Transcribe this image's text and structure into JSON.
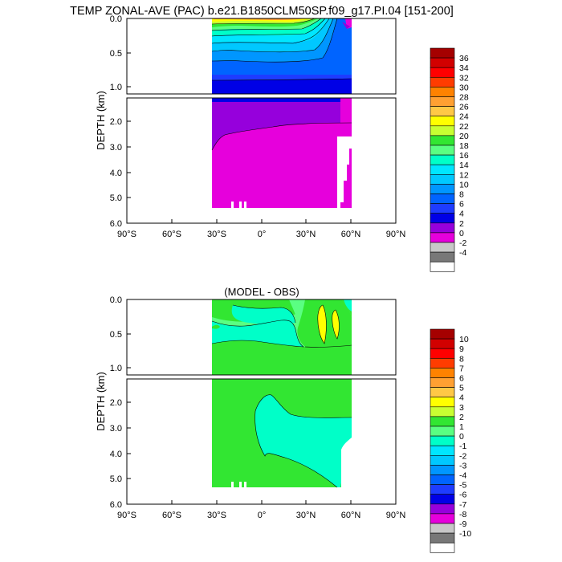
{
  "title": "TEMP ZONAL-AVE (PAC) b.e21.B1850CLM50SP.f09_g17.PI.04 [151-200]",
  "chart_data": [
    {
      "type": "contour",
      "title": "",
      "ylabel": "DEPTH (km)",
      "xlim": [
        -90,
        90
      ],
      "ylim_km": [
        0,
        6
      ],
      "y_break_km": 1.1,
      "x_ticks": [
        "90°S",
        "60°S",
        "30°S",
        "0°",
        "30°N",
        "60°N",
        "90°N"
      ],
      "y_ticks_upper": [
        "0.0",
        "0.5",
        "1.0"
      ],
      "y_ticks_lower": [
        "2.0",
        "3.0",
        "4.0",
        "5.0",
        "6.0"
      ],
      "legend_title": "",
      "levels": [
        "36",
        "34",
        "32",
        "30",
        "28",
        "26",
        "24",
        "22",
        "20",
        "18",
        "16",
        "14",
        "12",
        "10",
        "8",
        "6",
        "4",
        "2",
        "0",
        "-2",
        "-4"
      ],
      "colors": [
        "#a50000",
        "#d20000",
        "#ff0000",
        "#ff3c00",
        "#ff8200",
        "#ffa032",
        "#ffc846",
        "#ffff00",
        "#c8ff32",
        "#32e632",
        "#5aff82",
        "#00ffc8",
        "#00e6ff",
        "#00c8ff",
        "#0096ff",
        "#0064ff",
        "#1e3cff",
        "#0000e6",
        "#9600dc",
        "#e600dc",
        "#c8c8c8",
        "#787878",
        "#ffffff"
      ]
    },
    {
      "type": "contour",
      "title": "(MODEL - OBS)",
      "ylabel": "DEPTH (km)",
      "xlim": [
        -90,
        90
      ],
      "ylim_km": [
        0,
        6
      ],
      "y_break_km": 1.1,
      "x_ticks": [
        "90°S",
        "60°S",
        "30°S",
        "0°",
        "30°N",
        "60°N",
        "90°N"
      ],
      "y_ticks_upper": [
        "0.0",
        "0.5",
        "1.0"
      ],
      "y_ticks_lower": [
        "2.0",
        "3.0",
        "4.0",
        "5.0",
        "6.0"
      ],
      "levels": [
        "10",
        "9",
        "8",
        "7",
        "6",
        "5",
        "4",
        "3",
        "2",
        "1",
        "0",
        "-1",
        "-2",
        "-3",
        "-4",
        "-5",
        "-6",
        "-7",
        "-8",
        "-9",
        "-10"
      ],
      "colors": [
        "#a50000",
        "#d20000",
        "#ff0000",
        "#ff3c00",
        "#ff8200",
        "#ffa032",
        "#ffc846",
        "#ffff00",
        "#c8ff32",
        "#32e632",
        "#5aff82",
        "#00ffc8",
        "#00e6ff",
        "#00c8ff",
        "#0096ff",
        "#0064ff",
        "#1e3cff",
        "#0000e6",
        "#9600dc",
        "#e600dc",
        "#c8c8c8",
        "#787878",
        "#ffffff"
      ]
    }
  ]
}
